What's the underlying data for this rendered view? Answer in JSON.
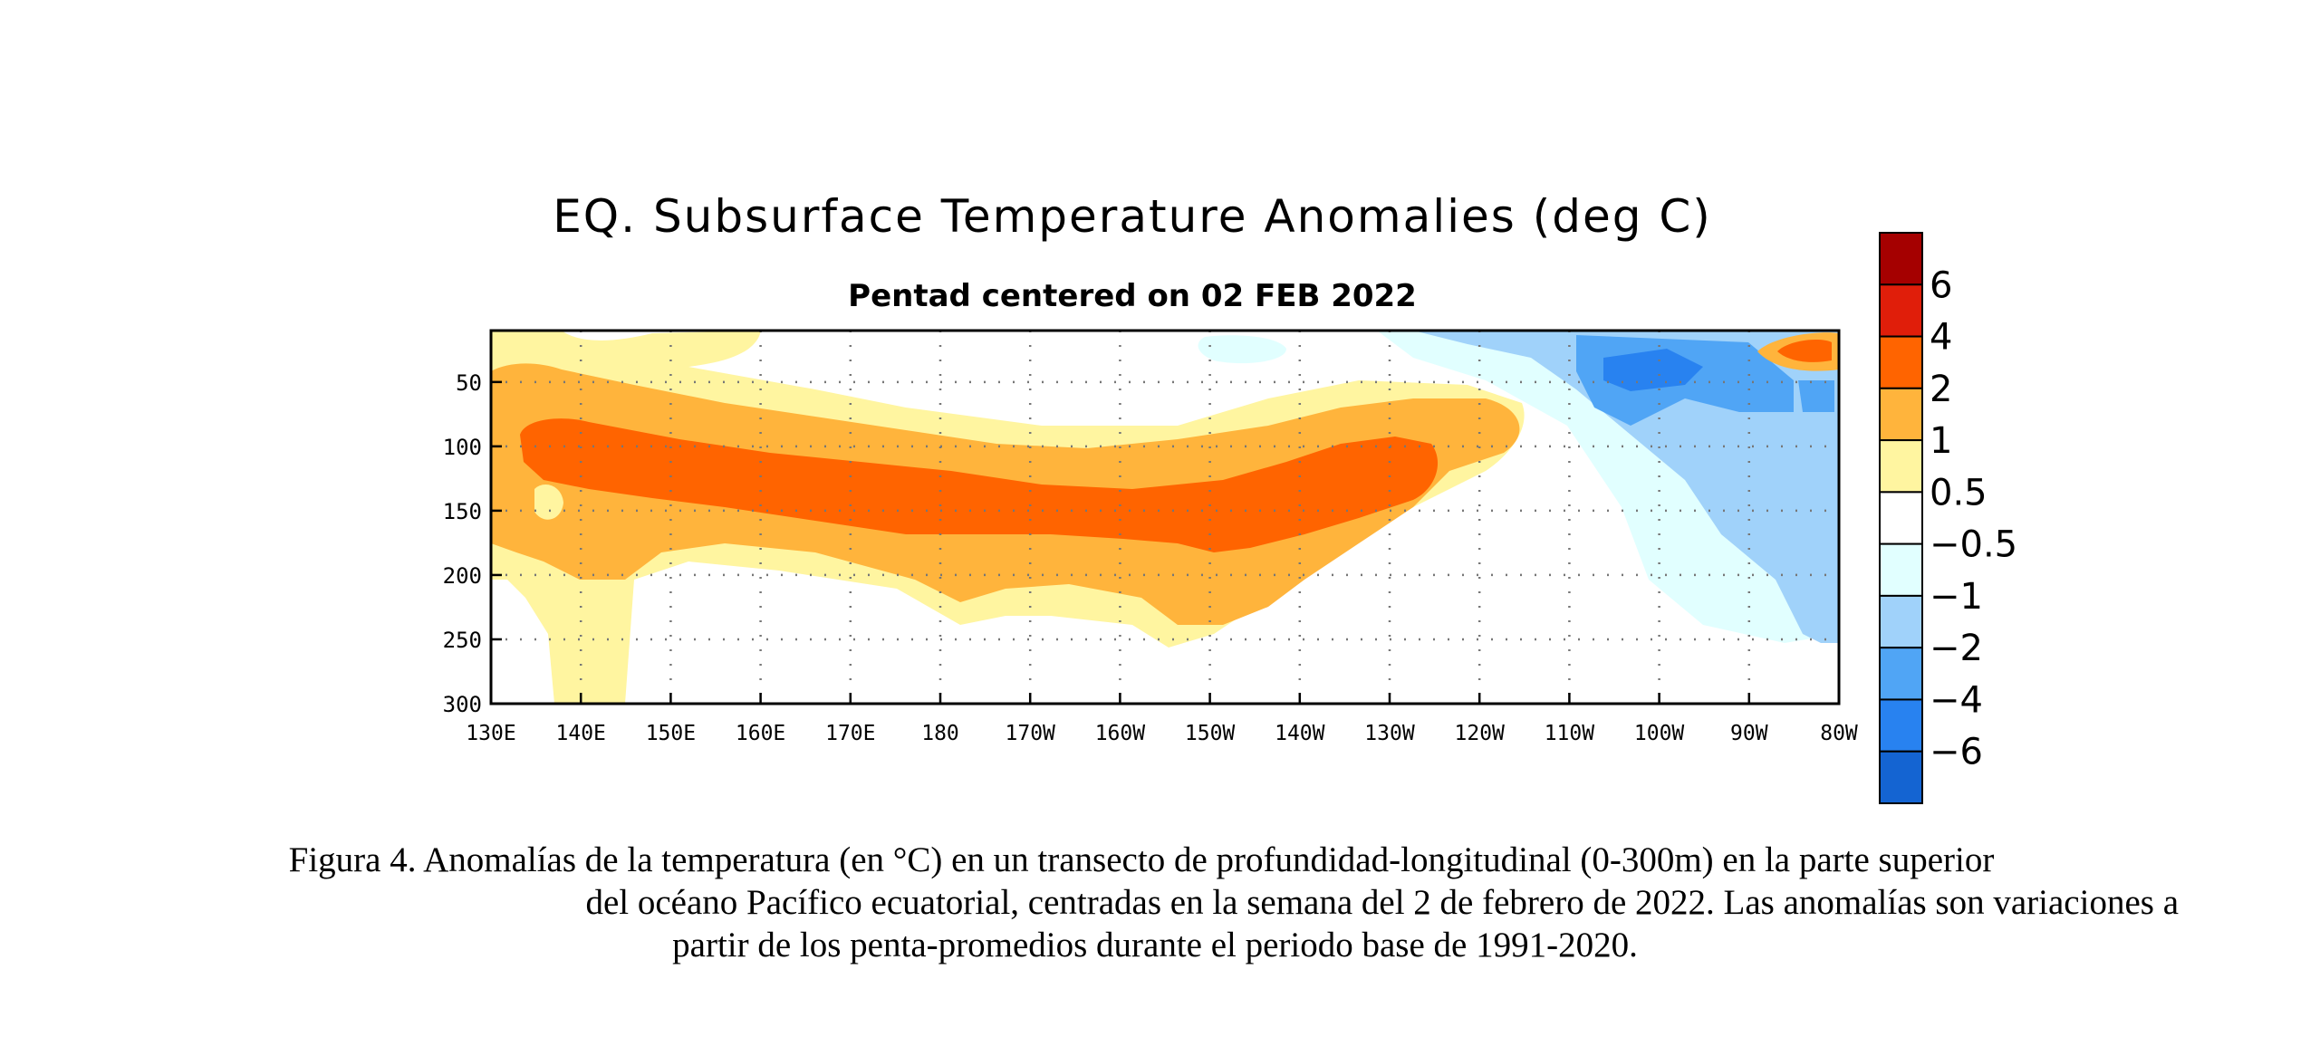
{
  "chart_data": {
    "type": "heatmap",
    "title": "EQ. Subsurface Temperature Anomalies (deg C)",
    "subtitle": "Pentad centered on 02 FEB 2022",
    "x_ticks": [
      "130E",
      "140E",
      "150E",
      "160E",
      "170E",
      "180",
      "170W",
      "160W",
      "150W",
      "140W",
      "130W",
      "120W",
      "110W",
      "100W",
      "90W",
      "80W"
    ],
    "x_range": [
      130,
      280
    ],
    "y_ticks": [
      50,
      100,
      150,
      200,
      250,
      300
    ],
    "y_range": [
      10,
      300
    ],
    "grid": true,
    "colorbar": {
      "placement": "right",
      "labels": [
        "6",
        "4",
        "2",
        "1",
        "0.5",
        "−0.5",
        "−1",
        "−2",
        "−4",
        "−6"
      ],
      "colors": [
        "#a50000",
        "#e01e0a",
        "#ff6400",
        "#ffb43c",
        "#fff5a0",
        "#ffffff",
        "#e1ffff",
        "#a0d2fa",
        "#50a5f5",
        "#2882f0",
        "#1464d2"
      ]
    },
    "anomaly_field": [
      {
        "level": 1,
        "shape": "main-warm-tongue",
        "lon_range": [
          130,
          245
        ],
        "depth_range": [
          25,
          225
        ]
      },
      {
        "level": 2,
        "shape": "core",
        "lon_range": [
          132,
          236
        ],
        "depth_range": [
          75,
          185
        ]
      },
      {
        "level": 1,
        "shape": "patch",
        "lon_range": [
          180,
          190
        ],
        "depth_range": [
          180,
          225
        ]
      },
      {
        "level": -2,
        "shape": "cold-patch",
        "lon_range": [
          250,
          274
        ],
        "depth_range": [
          10,
          80
        ]
      },
      {
        "level": 4,
        "shape": "warm-patch",
        "lon_range": [
          273,
          279
        ],
        "depth_range": [
          15,
          40
        ]
      }
    ]
  },
  "caption": {
    "line1": "Figura 4. Anomalías de la temperatura (en °C) en un transecto de profundidad-longitudinal (0-300m) en la parte superior",
    "line2": "del océano Pacífico ecuatorial, centradas en la semana del 2 de febrero de 2022. Las anomalías son variaciones a",
    "line3": "partir de los penta-promedios durante el periodo base de 1991-2020."
  }
}
